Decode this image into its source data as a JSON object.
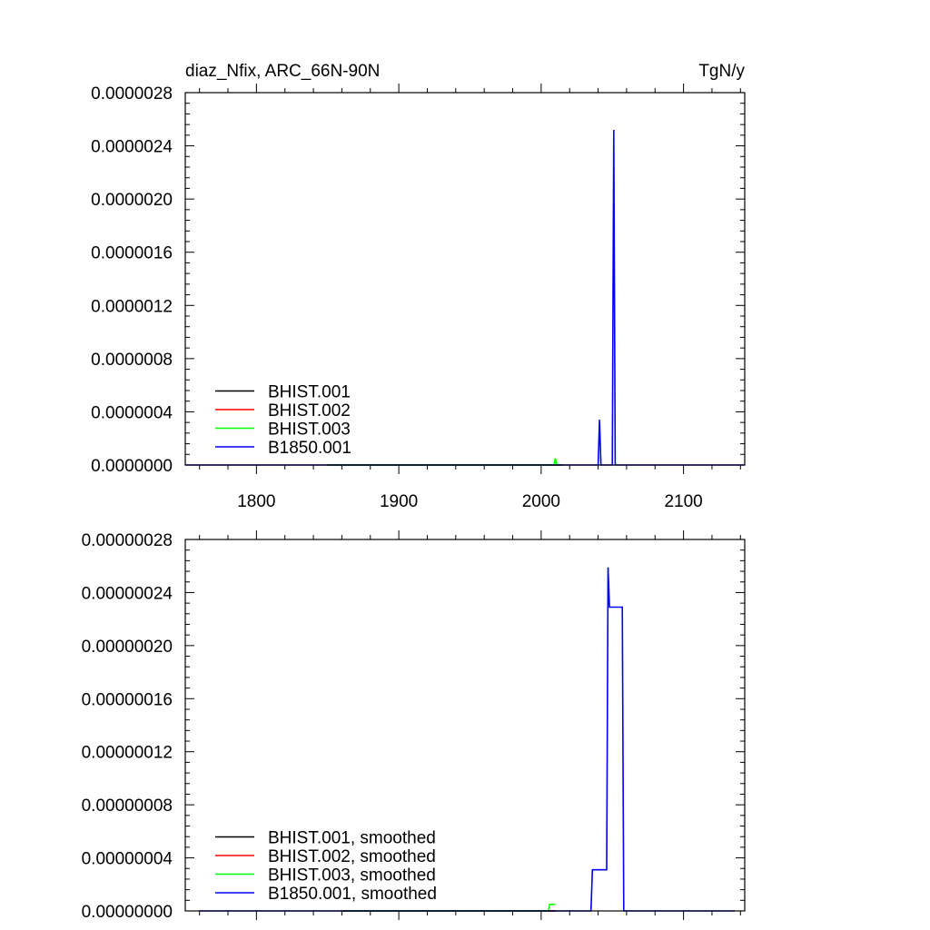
{
  "chart_data": [
    {
      "type": "line",
      "title_left": "diaz_Nfix, ARC_66N-90N",
      "title_right": "TgN/y",
      "xlim": [
        1750,
        2143
      ],
      "ylim": [
        0,
        2.8e-06
      ],
      "x_ticks": [
        1800,
        1900,
        2000,
        2100
      ],
      "x_tick_labels": [
        "1800",
        "1900",
        "2000",
        "2100"
      ],
      "y_ticks": [
        0,
        4e-07,
        8e-07,
        1.2e-06,
        1.6e-06,
        2e-06,
        2.4e-06,
        2.8e-06
      ],
      "y_tick_labels": [
        "0.0000000",
        "0.0000004",
        "0.0000008",
        "0.0000012",
        "0.0000016",
        "0.0000020",
        "0.0000024",
        "0.0000028"
      ],
      "legend_position": "bottom-left",
      "series": [
        {
          "name": "BHIST.001",
          "color": "#000000",
          "x": [
            1850,
            2015
          ],
          "y": [
            0,
            0
          ]
        },
        {
          "name": "BHIST.002",
          "color": "#ff0000",
          "x": [
            1850,
            2015
          ],
          "y": [
            0,
            0
          ]
        },
        {
          "name": "BHIST.003",
          "color": "#00ff00",
          "x": [
            1850,
            2009,
            2010,
            2011,
            2015
          ],
          "y": [
            0,
            0,
            5e-08,
            0,
            0
          ]
        },
        {
          "name": "B1850.001",
          "color": "#0000ff",
          "x": [
            1750,
            2040,
            2041,
            2042,
            2050,
            2051,
            2052,
            2143
          ],
          "y": [
            0,
            0,
            3.4e-07,
            0,
            0,
            2.52e-06,
            0,
            0
          ]
        }
      ]
    },
    {
      "type": "line",
      "xlim": [
        1750,
        2143
      ],
      "ylim": [
        0,
        2.8e-07
      ],
      "x_ticks": [
        1800,
        1900,
        2000,
        2100
      ],
      "y_ticks": [
        0,
        4e-08,
        8e-08,
        1.2e-07,
        1.6e-07,
        2e-07,
        2.4e-07,
        2.8e-07
      ],
      "y_tick_labels": [
        "0.00000000",
        "0.00000004",
        "0.00000008",
        "0.00000012",
        "0.00000016",
        "0.00000020",
        "0.00000024",
        "0.00000028"
      ],
      "legend_position": "bottom-left",
      "series": [
        {
          "name": "BHIST.001, smoothed",
          "color": "#000000",
          "x": [
            1860,
            2010
          ],
          "y": [
            0,
            0
          ]
        },
        {
          "name": "BHIST.002, smoothed",
          "color": "#ff0000",
          "x": [
            1860,
            2010
          ],
          "y": [
            0,
            0
          ]
        },
        {
          "name": "BHIST.003, smoothed",
          "color": "#00ff00",
          "x": [
            1860,
            2005,
            2006,
            2010
          ],
          "y": [
            0,
            0,
            5e-09,
            5e-09
          ]
        },
        {
          "name": "B1850.001, smoothed",
          "color": "#0000ff",
          "x": [
            1760,
            2035,
            2036,
            2046,
            2047,
            2048,
            2057,
            2058,
            2136
          ],
          "y": [
            0,
            0,
            3.1e-08,
            3.1e-08,
            2.59e-07,
            2.29e-07,
            2.29e-07,
            0,
            0
          ]
        }
      ]
    }
  ]
}
